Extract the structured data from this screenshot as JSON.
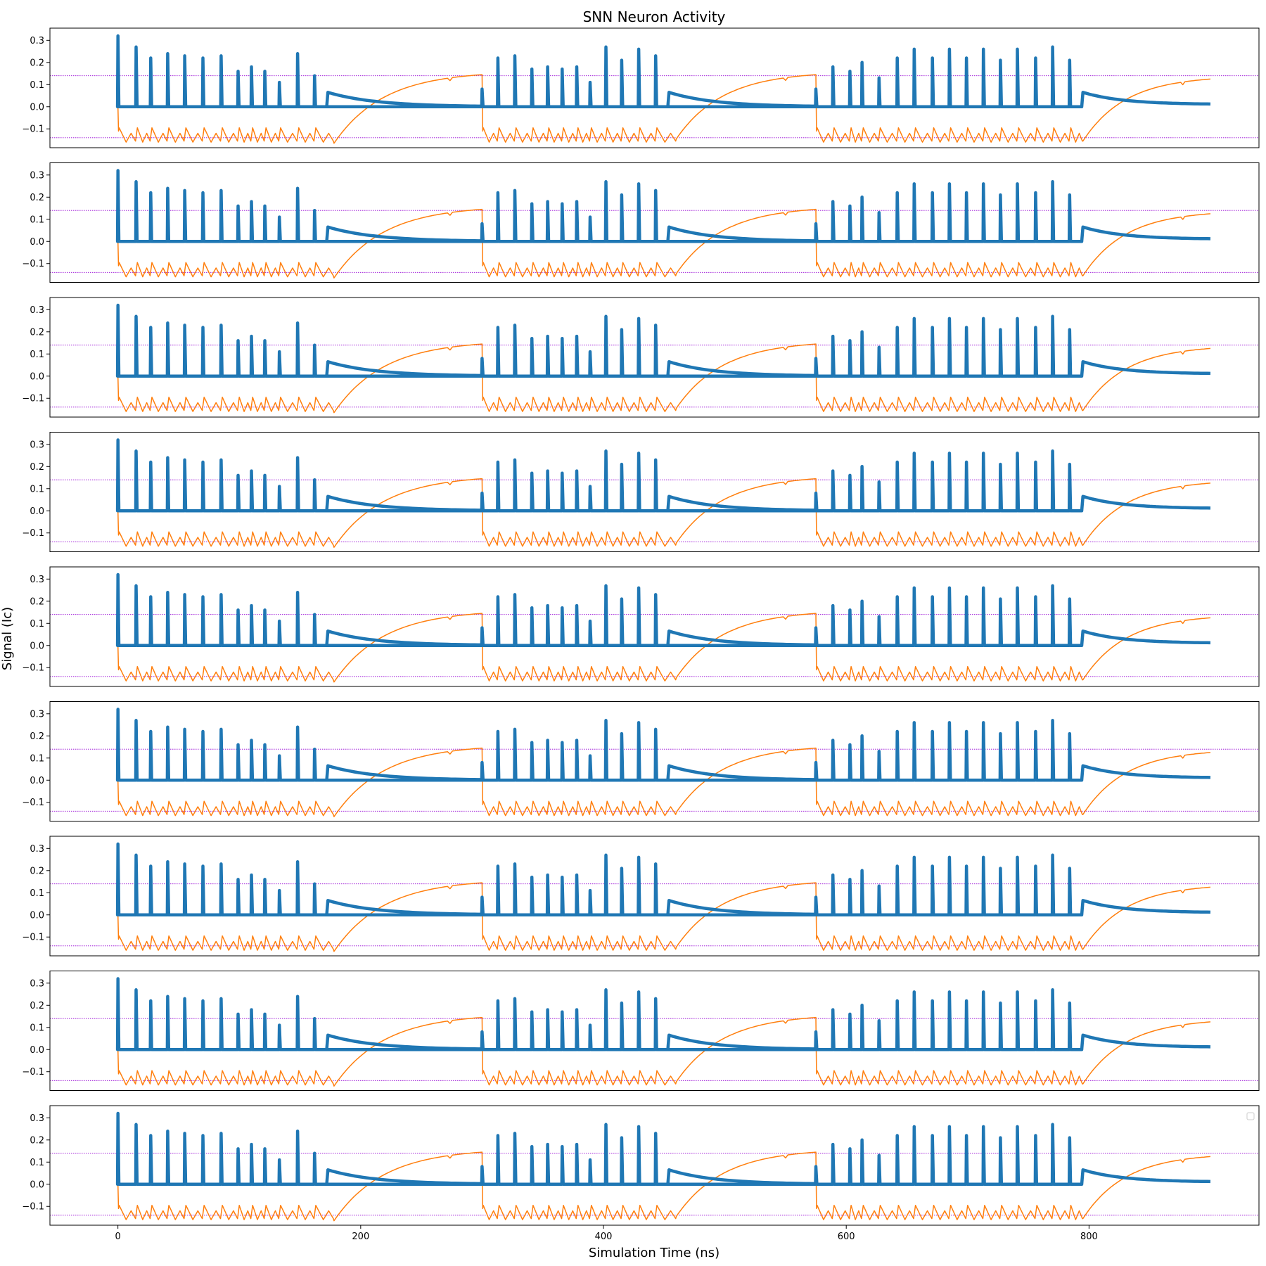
{
  "chart_data": {
    "type": "line",
    "title": "SNN Neuron Activity",
    "xlabel": "Simulation Time (ns)",
    "ylabel": "Signal (Ic)",
    "xlim": [
      -56,
      940
    ],
    "ylim": [
      -0.185,
      0.355
    ],
    "xticks": [
      0,
      200,
      400,
      600,
      800
    ],
    "xtick_labels": [
      "0",
      "200",
      "400",
      "600",
      "800"
    ],
    "yticks": [
      -0.1,
      0.0,
      0.1,
      0.2,
      0.3
    ],
    "ytick_labels": [
      "−0.1",
      "0.0",
      "0.1",
      "0.2",
      "0.3"
    ],
    "subplot_count": 9,
    "grid": false,
    "legend": "top-right (empty)",
    "threshold_lines": [
      0.14,
      -0.14
    ],
    "colors": {
      "spike_signal": "#1f77b4",
      "membrane_potential": "#ff7f0e",
      "threshold": "#9400d3"
    },
    "series": [
      {
        "role": "spike_signal",
        "spike_times": [
          0,
          15,
          27,
          41,
          55,
          70,
          85,
          99,
          110,
          121,
          133,
          148,
          162,
          300,
          313,
          327,
          341,
          354,
          366,
          378,
          389,
          402,
          415,
          429,
          443,
          575,
          589,
          603,
          613,
          627,
          642,
          656,
          671,
          685,
          699,
          713,
          727,
          741,
          756,
          770,
          784
        ],
        "spike_peaks": [
          0.32,
          0.27,
          0.22,
          0.24,
          0.23,
          0.22,
          0.23,
          0.16,
          0.18,
          0.16,
          0.11,
          0.24,
          0.14,
          0.08,
          0.22,
          0.23,
          0.17,
          0.18,
          0.17,
          0.18,
          0.11,
          0.27,
          0.21,
          0.26,
          0.23,
          0.08,
          0.18,
          0.16,
          0.2,
          0.13,
          0.22,
          0.26,
          0.22,
          0.26,
          0.22,
          0.26,
          0.21,
          0.26,
          0.22,
          0.27,
          0.21
        ],
        "decay_segments": [
          {
            "start": 173,
            "end": 300,
            "start_value": 0.065,
            "end_value": 0.0
          },
          {
            "start": 454,
            "end": 575,
            "start_value": 0.065,
            "end_value": 0.0
          },
          {
            "start": 795,
            "end": 900,
            "start_value": 0.065,
            "end_value": 0.01
          }
        ]
      },
      {
        "role": "membrane_potential",
        "burst_windows": [
          [
            0,
            178
          ],
          [
            300,
            460
          ],
          [
            575,
            795
          ]
        ],
        "recovery_segments": [
          {
            "start": 178,
            "end": 300,
            "start_value": -0.165,
            "end_value": 0.145
          },
          {
            "start": 460,
            "end": 575,
            "start_value": -0.145,
            "end_value": 0.145
          },
          {
            "start": 795,
            "end": 900,
            "start_value": -0.155,
            "end_value": 0.125
          }
        ]
      }
    ]
  }
}
